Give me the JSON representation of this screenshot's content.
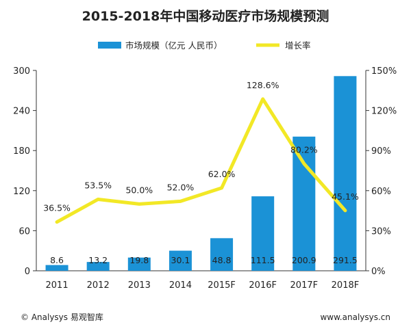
{
  "chart_data": {
    "type": "bar+line",
    "title": "2015-2018年中国移动医疗市场规模预测",
    "categories": [
      "2011",
      "2012",
      "2013",
      "2014",
      "2015F",
      "2016F",
      "2017F",
      "2018F"
    ],
    "series": [
      {
        "name": "市场规模（亿元 人民币）",
        "kind": "bar",
        "axis": "left",
        "values": [
          8.6,
          13.2,
          19.8,
          30.1,
          48.8,
          111.5,
          200.9,
          291.5
        ],
        "labels": [
          "8.6",
          "13.2",
          "19.8",
          "30.1",
          "48.8",
          "111.5",
          "200.9",
          "291.5"
        ]
      },
      {
        "name": "增长率",
        "kind": "line",
        "axis": "right",
        "values": [
          36.5,
          53.5,
          50.0,
          52.0,
          62.0,
          128.6,
          80.2,
          45.1
        ],
        "labels": [
          "36.5%",
          "53.5%",
          "50.0%",
          "52.0%",
          "62.0%",
          "128.6%",
          "80.2%",
          "45.1%"
        ]
      }
    ],
    "y_left": {
      "min": 0,
      "max": 300,
      "ticks": [
        "0",
        "60",
        "120",
        "180",
        "240",
        "300"
      ]
    },
    "y_right": {
      "min": 0,
      "max": 150,
      "ticks": [
        "0%",
        "30%",
        "60%",
        "90%",
        "120%",
        "150%"
      ]
    },
    "legend_position": "top",
    "grid": false
  },
  "footer": {
    "source": "© Analysys 易观智库",
    "url": "www.analysys.cn"
  },
  "colors": {
    "bar": "#1b92d6",
    "line": "#f2e826",
    "axis": "#333333",
    "text": "#222222"
  }
}
